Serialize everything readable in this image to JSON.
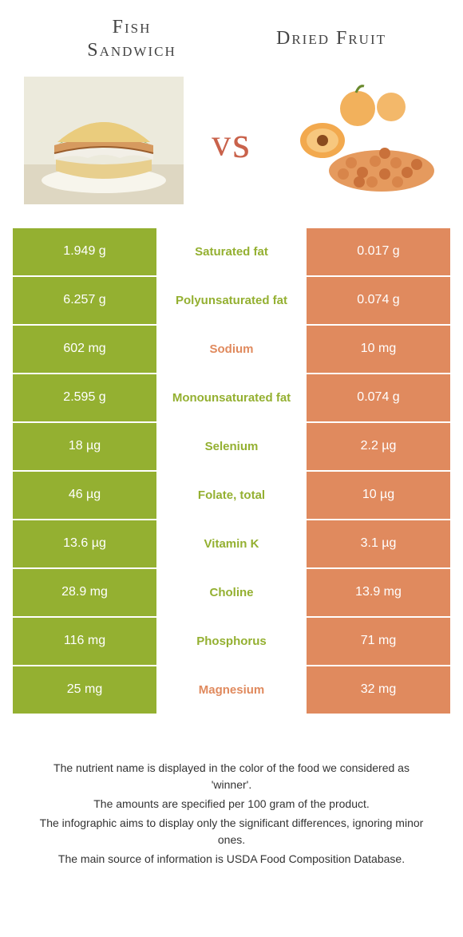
{
  "colors": {
    "left_food": "#94b031",
    "right_food": "#e08a5e",
    "mid_bg": "#ffffff",
    "title_text": "#444444",
    "vs_text": "#c9624b",
    "body_text": "#333333"
  },
  "header": {
    "left_title": "Fish\nSandwich",
    "right_title": "Dried Fruit",
    "vs_label": "vs"
  },
  "nutrients": [
    {
      "name": "Saturated fat",
      "left": "1.949 g",
      "right": "0.017 g",
      "winner": "left"
    },
    {
      "name": "Polyunsaturated fat",
      "left": "6.257 g",
      "right": "0.074 g",
      "winner": "left"
    },
    {
      "name": "Sodium",
      "left": "602 mg",
      "right": "10 mg",
      "winner": "right"
    },
    {
      "name": "Monounsaturated fat",
      "left": "2.595 g",
      "right": "0.074 g",
      "winner": "left"
    },
    {
      "name": "Selenium",
      "left": "18 µg",
      "right": "2.2 µg",
      "winner": "left"
    },
    {
      "name": "Folate, total",
      "left": "46 µg",
      "right": "10 µg",
      "winner": "left"
    },
    {
      "name": "Vitamin K",
      "left": "13.6 µg",
      "right": "3.1 µg",
      "winner": "left"
    },
    {
      "name": "Choline",
      "left": "28.9 mg",
      "right": "13.9 mg",
      "winner": "left"
    },
    {
      "name": "Phosphorus",
      "left": "116 mg",
      "right": "71 mg",
      "winner": "left"
    },
    {
      "name": "Magnesium",
      "left": "25 mg",
      "right": "32 mg",
      "winner": "right"
    }
  ],
  "footer_notes": [
    "The nutrient name is displayed in the color of the food we considered as 'winner'.",
    "The amounts are specified per 100 gram of the product.",
    "The infographic aims to display only the significant differences, ignoring minor ones.",
    "The main source of information is USDA Food Composition Database."
  ]
}
